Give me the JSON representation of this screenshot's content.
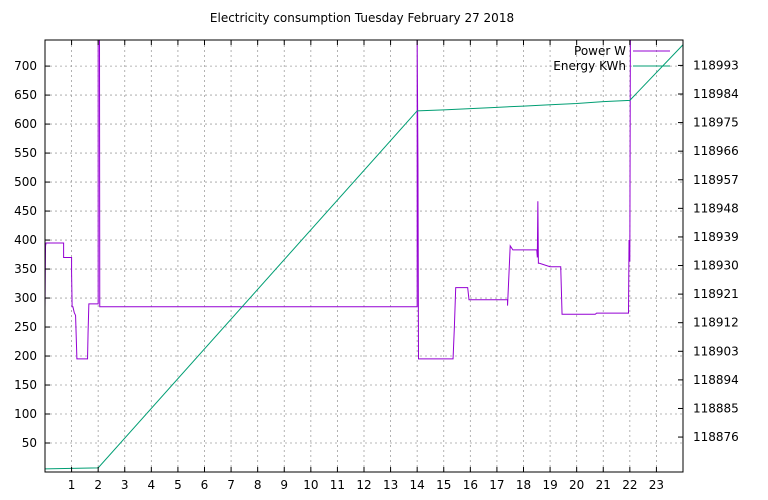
{
  "chart_data": {
    "type": "line",
    "title": "Electricity consumption Tuesday February 27 2018",
    "xlabel": "",
    "ylabel": "",
    "y2label": "",
    "xlim": [
      0,
      24
    ],
    "ylim": [
      0,
      745
    ],
    "y2lim": [
      118865,
      119001
    ],
    "grid": true,
    "legend_position": "top-right",
    "x_ticks": [
      1,
      2,
      3,
      4,
      5,
      6,
      7,
      8,
      9,
      10,
      11,
      12,
      13,
      14,
      15,
      16,
      17,
      18,
      19,
      20,
      21,
      22,
      23
    ],
    "y_ticks": [
      50,
      100,
      150,
      200,
      250,
      300,
      350,
      400,
      450,
      500,
      550,
      600,
      650,
      700
    ],
    "y2_ticks": [
      118876,
      118885,
      118894,
      118903,
      118912,
      118921,
      118930,
      118939,
      118948,
      118957,
      118966,
      118975,
      118984,
      118993
    ],
    "series": [
      {
        "name": "Power W",
        "axis": "y",
        "color": "#9400d3",
        "x": [
          0,
          0.02,
          0.04,
          0.06,
          0.7,
          0.7,
          1.0,
          1.0,
          1.02,
          1.05,
          1.1,
          1.15,
          1.2,
          1.22,
          1.6,
          1.62,
          1.65,
          2.0,
          2.0,
          2.05,
          2.06,
          2.08,
          14.0,
          14.0,
          14.03,
          14.05,
          15.35,
          15.4,
          15.45,
          15.9,
          15.95,
          17.4,
          17.4,
          17.5,
          17.6,
          18.5,
          18.52,
          18.54,
          18.56,
          18.6,
          19.0,
          19.02,
          19.4,
          19.45,
          20.7,
          20.75,
          21.95,
          21.97,
          22.0,
          22.02,
          22.04,
          22.06
        ],
        "y": [
          280,
          390,
          395,
          395,
          395,
          370,
          370,
          345,
          285,
          285,
          275,
          270,
          195,
          195,
          195,
          240,
          290,
          290,
          745,
          745,
          285,
          285,
          285,
          745,
          530,
          195,
          195,
          250,
          318,
          318,
          297,
          297,
          287,
          390,
          383,
          383,
          370,
          467,
          360,
          360,
          354,
          354,
          354,
          272,
          272,
          274,
          274,
          400,
          363,
          745,
          745,
          745
        ]
      },
      {
        "name": "Energy KWh",
        "axis": "y2",
        "color": "#009e73",
        "x": [
          0,
          2.0,
          14.0,
          15.0,
          16.0,
          17.0,
          18.0,
          19.0,
          20.0,
          21.0,
          22.0,
          24.0
        ],
        "y": [
          118866,
          118866.3,
          118978.7,
          118979,
          118979.4,
          118979.8,
          118980.2,
          118980.6,
          118981,
          118981.6,
          118982.0,
          118999.5
        ]
      }
    ]
  }
}
